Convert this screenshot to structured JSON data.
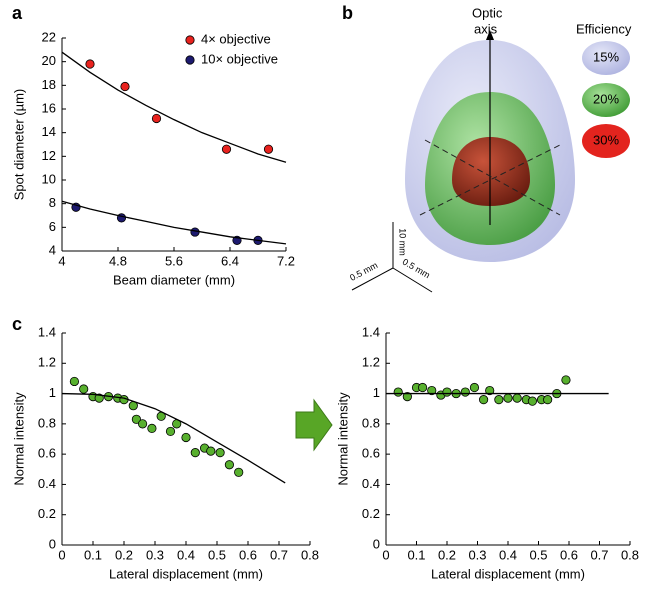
{
  "chart_data": [
    {
      "type": "scatter",
      "panel": "a",
      "xlabel": "Beam diameter (mm)",
      "ylabel": "Spot diameter (µm)",
      "xlim": [
        4,
        7.2
      ],
      "ylim": [
        4,
        22
      ],
      "xticks": [
        4,
        4.8,
        5.6,
        6.4,
        7.2
      ],
      "yticks": [
        4,
        6,
        8,
        10,
        12,
        14,
        16,
        18,
        20,
        22
      ],
      "legend": "upper right",
      "series": [
        {
          "name": "4× objective",
          "color": "#e8221e",
          "x": [
            4.4,
            4.9,
            5.35,
            6.35,
            6.95
          ],
          "values": [
            19.8,
            17.9,
            15.2,
            12.6,
            12.6
          ]
        },
        {
          "name": "10× objective",
          "color": "#1d1a6f",
          "x": [
            4.2,
            4.85,
            5.9,
            6.5,
            6.8
          ],
          "values": [
            7.7,
            6.8,
            5.6,
            4.9,
            4.9
          ]
        },
        {
          "type": "line",
          "color": "#000000",
          "x": [
            4,
            4.4,
            4.8,
            5.2,
            5.6,
            6,
            6.4,
            6.8,
            7.2
          ],
          "values": [
            20.8,
            19.1,
            17.6,
            16.3,
            15.1,
            14.0,
            13.1,
            12.2,
            11.5
          ]
        },
        {
          "type": "line",
          "color": "#000000",
          "x": [
            4,
            4.4,
            4.8,
            5.2,
            5.6,
            6,
            6.4,
            6.8,
            7.2
          ],
          "values": [
            8.2,
            7.55,
            7.0,
            6.5,
            6.0,
            5.6,
            5.2,
            4.9,
            4.6
          ]
        }
      ]
    },
    {
      "type": "scatter",
      "panel": "c",
      "xlabel": "Lateral displacement (mm)",
      "ylabel": "Normal intensity",
      "xlim": [
        0,
        0.8
      ],
      "ylim": [
        0,
        1.4
      ],
      "xticks": [
        0,
        0.1,
        0.2,
        0.3,
        0.4,
        0.5,
        0.6,
        0.7,
        0.8
      ],
      "yticks": [
        0,
        0.2,
        0.4,
        0.6,
        0.8,
        1,
        1.2,
        1.4
      ],
      "series": [
        {
          "color": "#58b02e",
          "x": [
            0.04,
            0.07,
            0.1,
            0.12,
            0.15,
            0.18,
            0.2,
            0.23,
            0.24,
            0.26,
            0.29,
            0.32,
            0.35,
            0.37,
            0.4,
            0.43,
            0.46,
            0.48,
            0.51,
            0.54,
            0.57
          ],
          "values": [
            1.08,
            1.03,
            0.98,
            0.97,
            0.98,
            0.97,
            0.96,
            0.92,
            0.83,
            0.8,
            0.77,
            0.85,
            0.75,
            0.8,
            0.71,
            0.61,
            0.64,
            0.62,
            0.61,
            0.53,
            0.48
          ]
        },
        {
          "type": "line",
          "color": "#000000",
          "x": [
            0,
            0.1,
            0.2,
            0.3,
            0.4,
            0.5,
            0.6,
            0.72
          ],
          "values": [
            1,
            0.995,
            0.97,
            0.9,
            0.8,
            0.68,
            0.56,
            0.41
          ]
        }
      ]
    },
    {
      "type": "scatter",
      "xlabel": "Lateral displacement (mm)",
      "ylabel": "Normal intensity",
      "xlim": [
        0,
        0.8
      ],
      "ylim": [
        0,
        1.4
      ],
      "xticks": [
        0,
        0.1,
        0.2,
        0.3,
        0.4,
        0.5,
        0.6,
        0.7,
        0.8
      ],
      "yticks": [
        0,
        0.2,
        0.4,
        0.6,
        0.8,
        1,
        1.2,
        1.4
      ],
      "series": [
        {
          "color": "#58b02e",
          "x": [
            0.04,
            0.07,
            0.1,
            0.12,
            0.15,
            0.18,
            0.2,
            0.23,
            0.26,
            0.29,
            0.32,
            0.34,
            0.37,
            0.4,
            0.43,
            0.46,
            0.48,
            0.51,
            0.53,
            0.56,
            0.59
          ],
          "values": [
            1.01,
            0.98,
            1.04,
            1.04,
            1.02,
            0.99,
            1.01,
            1.0,
            1.01,
            1.04,
            0.96,
            1.02,
            0.96,
            0.97,
            0.97,
            0.96,
            0.95,
            0.96,
            0.96,
            1.0,
            1.09
          ]
        },
        {
          "type": "line",
          "color": "#000000",
          "x": [
            0,
            0.73
          ],
          "values": [
            1,
            1
          ]
        }
      ]
    }
  ],
  "diagram": {
    "panel": "b",
    "axis_label": [
      "Optic",
      "axis"
    ],
    "legend_title": "Efficiency",
    "levels": [
      "15%",
      "20%",
      "30%"
    ],
    "scale": [
      "10 mm",
      "0.5 mm",
      "0.5 mm"
    ]
  }
}
